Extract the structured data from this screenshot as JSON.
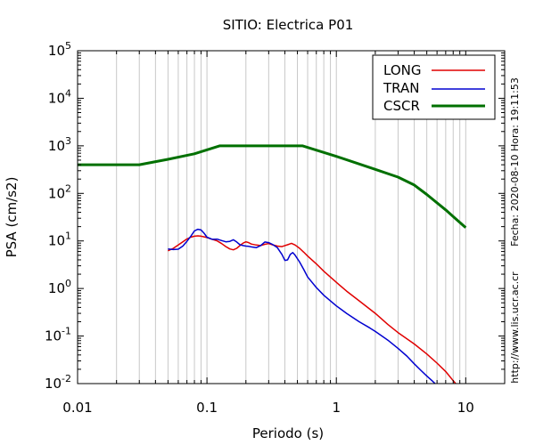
{
  "chart_data": {
    "type": "line",
    "title": "SITIO: Electrica P01",
    "xlabel": "Periodo (s)",
    "ylabel": "PSA (cm/s2)",
    "xscale": "log",
    "yscale": "log",
    "xlim": [
      0.01,
      20
    ],
    "ylim": [
      0.01,
      100000
    ],
    "grid": true,
    "legend_position": "top-right",
    "x_tick_labels": [
      {
        "value": 0.01,
        "label": "0.01"
      },
      {
        "value": 0.1,
        "label": "0.1"
      },
      {
        "value": 1,
        "label": "1"
      },
      {
        "value": 10,
        "label": "10"
      }
    ],
    "y_tick_labels": [
      {
        "value": 100000,
        "base": "10",
        "exp": "5"
      },
      {
        "value": 10000,
        "base": "10",
        "exp": "4"
      },
      {
        "value": 1000,
        "base": "10",
        "exp": "3"
      },
      {
        "value": 100,
        "base": "10",
        "exp": "2"
      },
      {
        "value": 10,
        "base": "10",
        "exp": "1"
      },
      {
        "value": 1,
        "base": "10",
        "exp": "0"
      },
      {
        "value": 0.1,
        "base": "10",
        "exp": "-1"
      },
      {
        "value": 0.01,
        "base": "10",
        "exp": "-2"
      }
    ],
    "side_text_date": "Fecha: 2020-08-10  Hora: 19:11:53",
    "side_text_url": "http://www.lis.ucr.ac.cr",
    "series": [
      {
        "name": "LONG",
        "color": "#e00000",
        "points": [
          [
            0.05,
            6.2
          ],
          [
            0.055,
            7.0
          ],
          [
            0.06,
            8.2
          ],
          [
            0.065,
            9.6
          ],
          [
            0.07,
            11.0
          ],
          [
            0.075,
            12.0
          ],
          [
            0.08,
            12.6
          ],
          [
            0.085,
            12.8
          ],
          [
            0.09,
            12.6
          ],
          [
            0.1,
            11.8
          ],
          [
            0.11,
            10.8
          ],
          [
            0.12,
            10.0
          ],
          [
            0.13,
            8.8
          ],
          [
            0.14,
            7.6
          ],
          [
            0.15,
            6.8
          ],
          [
            0.16,
            6.5
          ],
          [
            0.17,
            7.0
          ],
          [
            0.18,
            8.0
          ],
          [
            0.19,
            9.0
          ],
          [
            0.2,
            9.6
          ],
          [
            0.21,
            9.2
          ],
          [
            0.22,
            8.6
          ],
          [
            0.24,
            8.2
          ],
          [
            0.26,
            8.0
          ],
          [
            0.28,
            8.5
          ],
          [
            0.3,
            8.8
          ],
          [
            0.32,
            8.3
          ],
          [
            0.35,
            7.8
          ],
          [
            0.38,
            7.6
          ],
          [
            0.42,
            8.3
          ],
          [
            0.45,
            8.9
          ],
          [
            0.48,
            8.2
          ],
          [
            0.52,
            7.0
          ],
          [
            0.56,
            5.8
          ],
          [
            0.6,
            4.8
          ],
          [
            0.7,
            3.3
          ],
          [
            0.8,
            2.3
          ],
          [
            1.0,
            1.35
          ],
          [
            1.2,
            0.88
          ],
          [
            1.5,
            0.55
          ],
          [
            2.0,
            0.3
          ],
          [
            2.5,
            0.175
          ],
          [
            3.0,
            0.118
          ],
          [
            4.0,
            0.068
          ],
          [
            5.0,
            0.042
          ],
          [
            6.0,
            0.027
          ],
          [
            7.0,
            0.018
          ],
          [
            8.0,
            0.0115
          ],
          [
            8.5,
            0.0095
          ]
        ]
      },
      {
        "name": "TRAN",
        "color": "#0000d0",
        "points": [
          [
            0.05,
            6.8
          ],
          [
            0.055,
            6.6
          ],
          [
            0.06,
            6.7
          ],
          [
            0.065,
            7.8
          ],
          [
            0.07,
            9.8
          ],
          [
            0.075,
            12.6
          ],
          [
            0.08,
            16.2
          ],
          [
            0.085,
            17.6
          ],
          [
            0.09,
            17.0
          ],
          [
            0.095,
            14.5
          ],
          [
            0.1,
            12.0
          ],
          [
            0.11,
            10.8
          ],
          [
            0.12,
            10.9
          ],
          [
            0.13,
            10.2
          ],
          [
            0.14,
            9.6
          ],
          [
            0.15,
            9.8
          ],
          [
            0.16,
            10.6
          ],
          [
            0.17,
            9.5
          ],
          [
            0.18,
            8.3
          ],
          [
            0.19,
            8.0
          ],
          [
            0.2,
            7.8
          ],
          [
            0.21,
            7.7
          ],
          [
            0.22,
            7.5
          ],
          [
            0.24,
            7.2
          ],
          [
            0.26,
            8.0
          ],
          [
            0.28,
            9.5
          ],
          [
            0.3,
            9.2
          ],
          [
            0.32,
            8.5
          ],
          [
            0.35,
            7.2
          ],
          [
            0.38,
            5.2
          ],
          [
            0.4,
            3.9
          ],
          [
            0.42,
            4.0
          ],
          [
            0.44,
            5.2
          ],
          [
            0.46,
            5.7
          ],
          [
            0.48,
            5.0
          ],
          [
            0.52,
            3.6
          ],
          [
            0.56,
            2.5
          ],
          [
            0.6,
            1.75
          ],
          [
            0.7,
            1.05
          ],
          [
            0.8,
            0.72
          ],
          [
            1.0,
            0.43
          ],
          [
            1.2,
            0.3
          ],
          [
            1.5,
            0.2
          ],
          [
            1.8,
            0.15
          ],
          [
            2.0,
            0.125
          ],
          [
            2.5,
            0.082
          ],
          [
            3.0,
            0.055
          ],
          [
            3.5,
            0.038
          ],
          [
            4.0,
            0.026
          ],
          [
            4.5,
            0.019
          ],
          [
            5.0,
            0.0145
          ],
          [
            5.5,
            0.0115
          ],
          [
            5.8,
            0.01
          ]
        ]
      },
      {
        "name": "CSCR",
        "color": "#007000",
        "points": [
          [
            0.01,
            400
          ],
          [
            0.03,
            400
          ],
          [
            0.05,
            520
          ],
          [
            0.08,
            680
          ],
          [
            0.125,
            1000
          ],
          [
            0.55,
            1000
          ],
          [
            1.0,
            600
          ],
          [
            2.0,
            320
          ],
          [
            3.0,
            220
          ],
          [
            4.0,
            150
          ],
          [
            5.0,
            95
          ],
          [
            7.0,
            45
          ],
          [
            10.0,
            19
          ]
        ]
      }
    ]
  }
}
